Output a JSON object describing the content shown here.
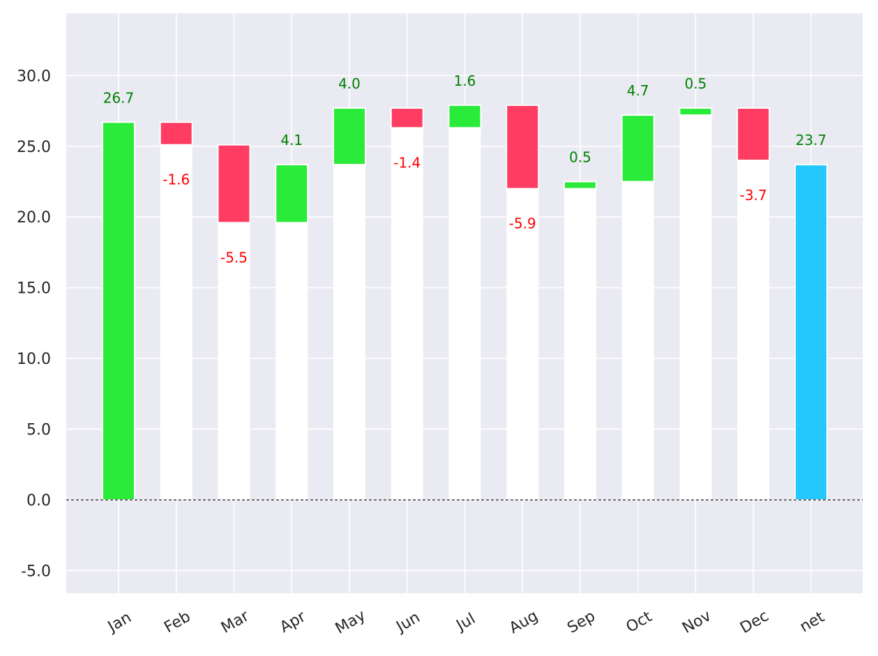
{
  "chart_data": {
    "type": "bar",
    "subtype": "waterfall",
    "title": "",
    "xlabel": "",
    "ylabel": "",
    "categories": [
      "Jan",
      "Feb",
      "Mar",
      "Apr",
      "May",
      "Jun",
      "Jul",
      "Aug",
      "Sep",
      "Oct",
      "Nov",
      "Dec",
      "net"
    ],
    "values": [
      26.7,
      -1.6,
      -5.5,
      4.1,
      4.0,
      -1.4,
      1.6,
      -5.9,
      0.5,
      4.7,
      0.5,
      -3.7,
      23.7
    ],
    "labels": [
      "26.7",
      "-1.6",
      "-5.5",
      "4.1",
      "4.0",
      "-1.4",
      "1.6",
      "-5.9",
      "0.5",
      "4.7",
      "0.5",
      "-3.7",
      "23.7"
    ],
    "total_index": 12,
    "ylim": [
      -6.6,
      34.4
    ],
    "yticks": [
      -5,
      0,
      5,
      10,
      15,
      20,
      25,
      30
    ],
    "ytick_labels": [
      "-5.0",
      "0.0",
      "5.0",
      "10.0",
      "15.0",
      "20.0",
      "25.0",
      "30.0"
    ],
    "grid": true,
    "zero_line": "dashed",
    "colors": {
      "increase": "#2aea3a",
      "decrease": "#ff3d62",
      "total": "#24c8ff",
      "base": "#ffffff",
      "background": "#eaeaf2",
      "grid": "#ffffff",
      "label_increase": "#008000",
      "label_decrease": "#ff0000",
      "label_total": "#008000",
      "zero_line": "#000000"
    }
  }
}
